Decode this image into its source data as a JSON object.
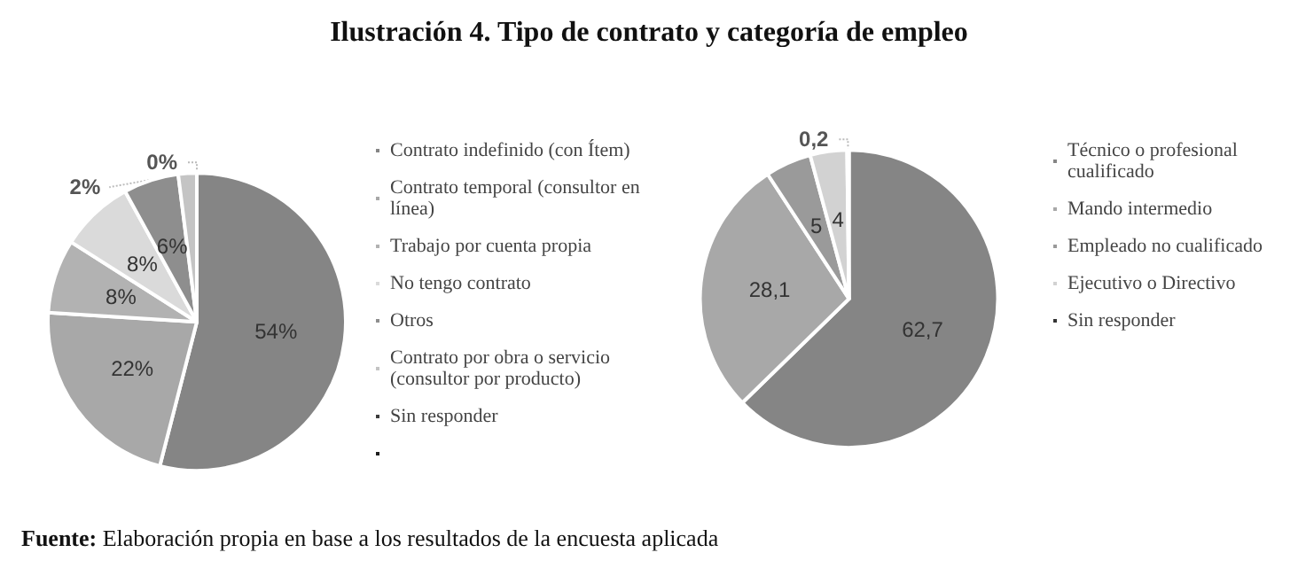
{
  "chart_data": [
    {
      "type": "pie",
      "title": "Ilustración 4.  Tipo de contrato y categoría de empleo",
      "categories": [
        "Contrato indefinido (con Ítem)",
        "Contrato temporal (consultor en línea)",
        "Trabajo por cuenta propia",
        "No tengo contrato",
        "Otros",
        "Contrato por obra o servicio (consultor por producto)",
        "Sin responder",
        null
      ],
      "values": [
        54,
        22,
        8,
        8,
        6,
        2,
        0,
        0
      ],
      "value_labels": [
        "54%",
        "22%",
        "8%",
        "8%",
        "6%",
        "2%",
        "0%",
        null
      ],
      "colors": [
        "#858585",
        "#a8a8a8",
        "#b2b2b2",
        "#dadada",
        "#8e8e8e",
        "#c4c4c4",
        "#3c3c3c",
        "#1e1e1e"
      ],
      "legend": "right",
      "annotations": [
        "Fuente: Elaboración propia en base a los resultados de la encuesta aplicada"
      ]
    },
    {
      "type": "pie",
      "categories": [
        "Técnico o profesional cualificado",
        "Mando intermedio",
        "Empleado no cualificado",
        "Ejecutivo o Directivo",
        "Sin responder"
      ],
      "values": [
        62.7,
        28.1,
        5,
        4,
        0.2
      ],
      "value_labels": [
        "62,7",
        "28,1",
        "5",
        "4",
        "0,2"
      ],
      "colors": [
        "#858585",
        "#a8a8a8",
        "#9a9a9a",
        "#d2d2d2",
        "#333333"
      ],
      "legend": "right"
    }
  ]
}
